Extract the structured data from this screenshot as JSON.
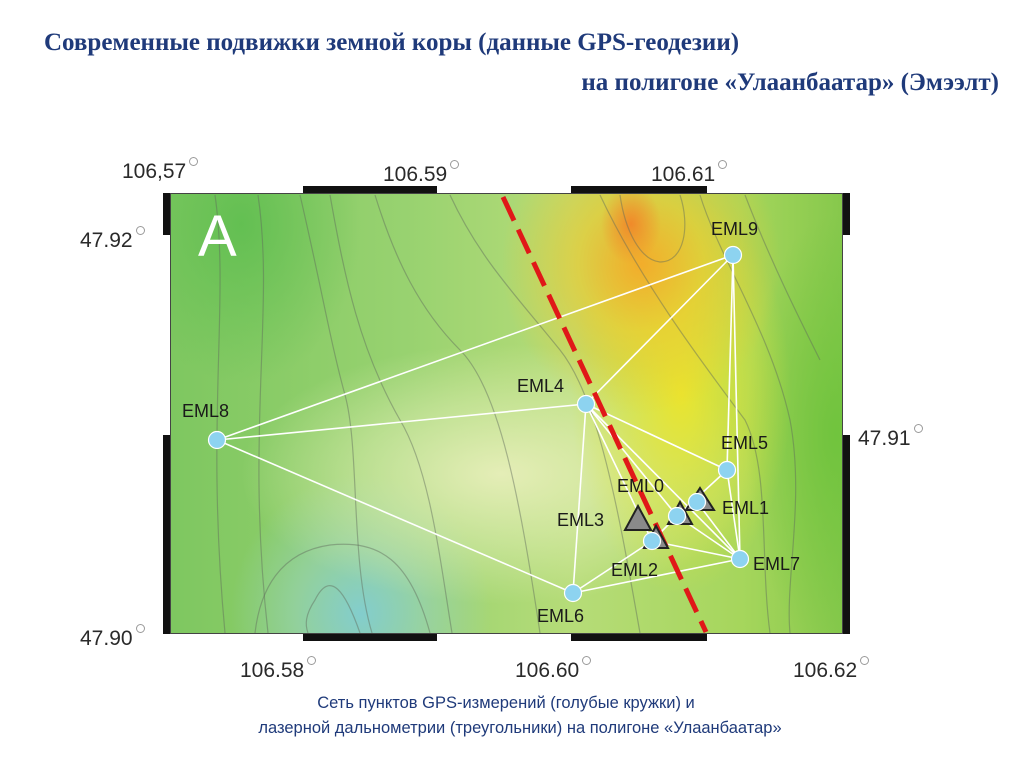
{
  "title": {
    "line1": "Современные подвижки земной коры (данные GPS-геодезии)",
    "line2": "на полигоне «Улаанбаатар» (Эмээлт)"
  },
  "map": {
    "panel_letter": "A",
    "top_ticks": [
      "106,57",
      "106.59",
      "106.61"
    ],
    "bottom_ticks": [
      "106.58",
      "106.60",
      "106.62"
    ],
    "left_ticks": [
      "47.92",
      "47.90"
    ],
    "right_ticks": [
      "47.91"
    ],
    "stations": {
      "gps": [
        {
          "name": "EML9"
        },
        {
          "name": "EML4"
        },
        {
          "name": "EML8"
        },
        {
          "name": "EML5"
        },
        {
          "name": "EML6"
        },
        {
          "name": "EML7"
        },
        {
          "name": "EML2"
        }
      ],
      "laser": [
        {
          "name": "EML0"
        },
        {
          "name": "EML1"
        },
        {
          "name": "EML3"
        }
      ]
    },
    "colors": {
      "gps_point": "#8dd3f0",
      "laser_triangle": "#8a8a8a",
      "fault_line": "#e01818",
      "network_lines": "#ffffff"
    }
  },
  "caption": {
    "line1": "Сеть пунктов GPS-измерений (голубые кружки) и",
    "line2": "лазерной дальнометрии (треугольники) на полигоне «Улаанбаатар»"
  }
}
